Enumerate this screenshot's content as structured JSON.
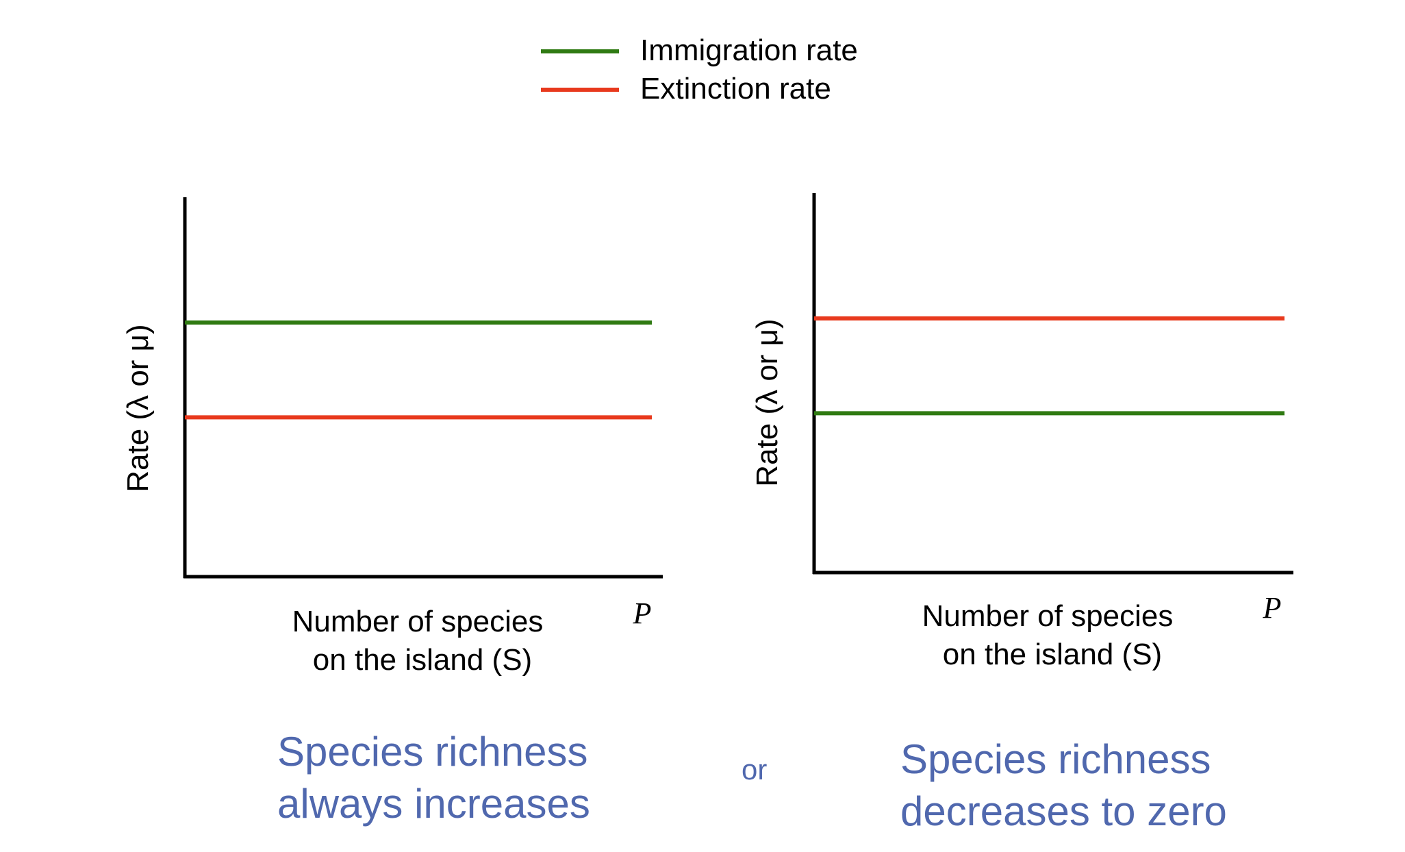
{
  "legend": [
    {
      "label": "Immigration rate",
      "color": "#2f7a12"
    },
    {
      "label": "Extinction rate",
      "color": "#e8391d"
    }
  ],
  "chart_data": [
    {
      "type": "line",
      "ylabel": "Rate (λ or μ)",
      "xlabel_line1": "Number of species",
      "xlabel_line2": "on the island (S)",
      "x_end_label": "P",
      "grid": false,
      "ylim": [
        0,
        1
      ],
      "series": [
        {
          "name": "Immigration rate",
          "color": "#2f7a12",
          "x": [
            0,
            1
          ],
          "values": [
            0.67,
            0.67
          ]
        },
        {
          "name": "Extinction rate",
          "color": "#e8391d",
          "x": [
            0,
            1
          ],
          "values": [
            0.42,
            0.42
          ]
        }
      ]
    },
    {
      "type": "line",
      "ylabel": "Rate (λ or μ)",
      "xlabel_line1": "Number of species",
      "xlabel_line2": "on the island (S)",
      "x_end_label": "P",
      "grid": false,
      "ylim": [
        0,
        1
      ],
      "series": [
        {
          "name": "Immigration rate",
          "color": "#2f7a12",
          "x": [
            0,
            1
          ],
          "values": [
            0.42,
            0.42
          ]
        },
        {
          "name": "Extinction rate",
          "color": "#e8391d",
          "x": [
            0,
            1
          ],
          "values": [
            0.67,
            0.67
          ]
        }
      ]
    }
  ],
  "captions": {
    "left_line1": "Species richness",
    "left_line2": "always increases",
    "or": "or",
    "right_line1": "Species richness",
    "right_line2": "decreases to zero"
  }
}
